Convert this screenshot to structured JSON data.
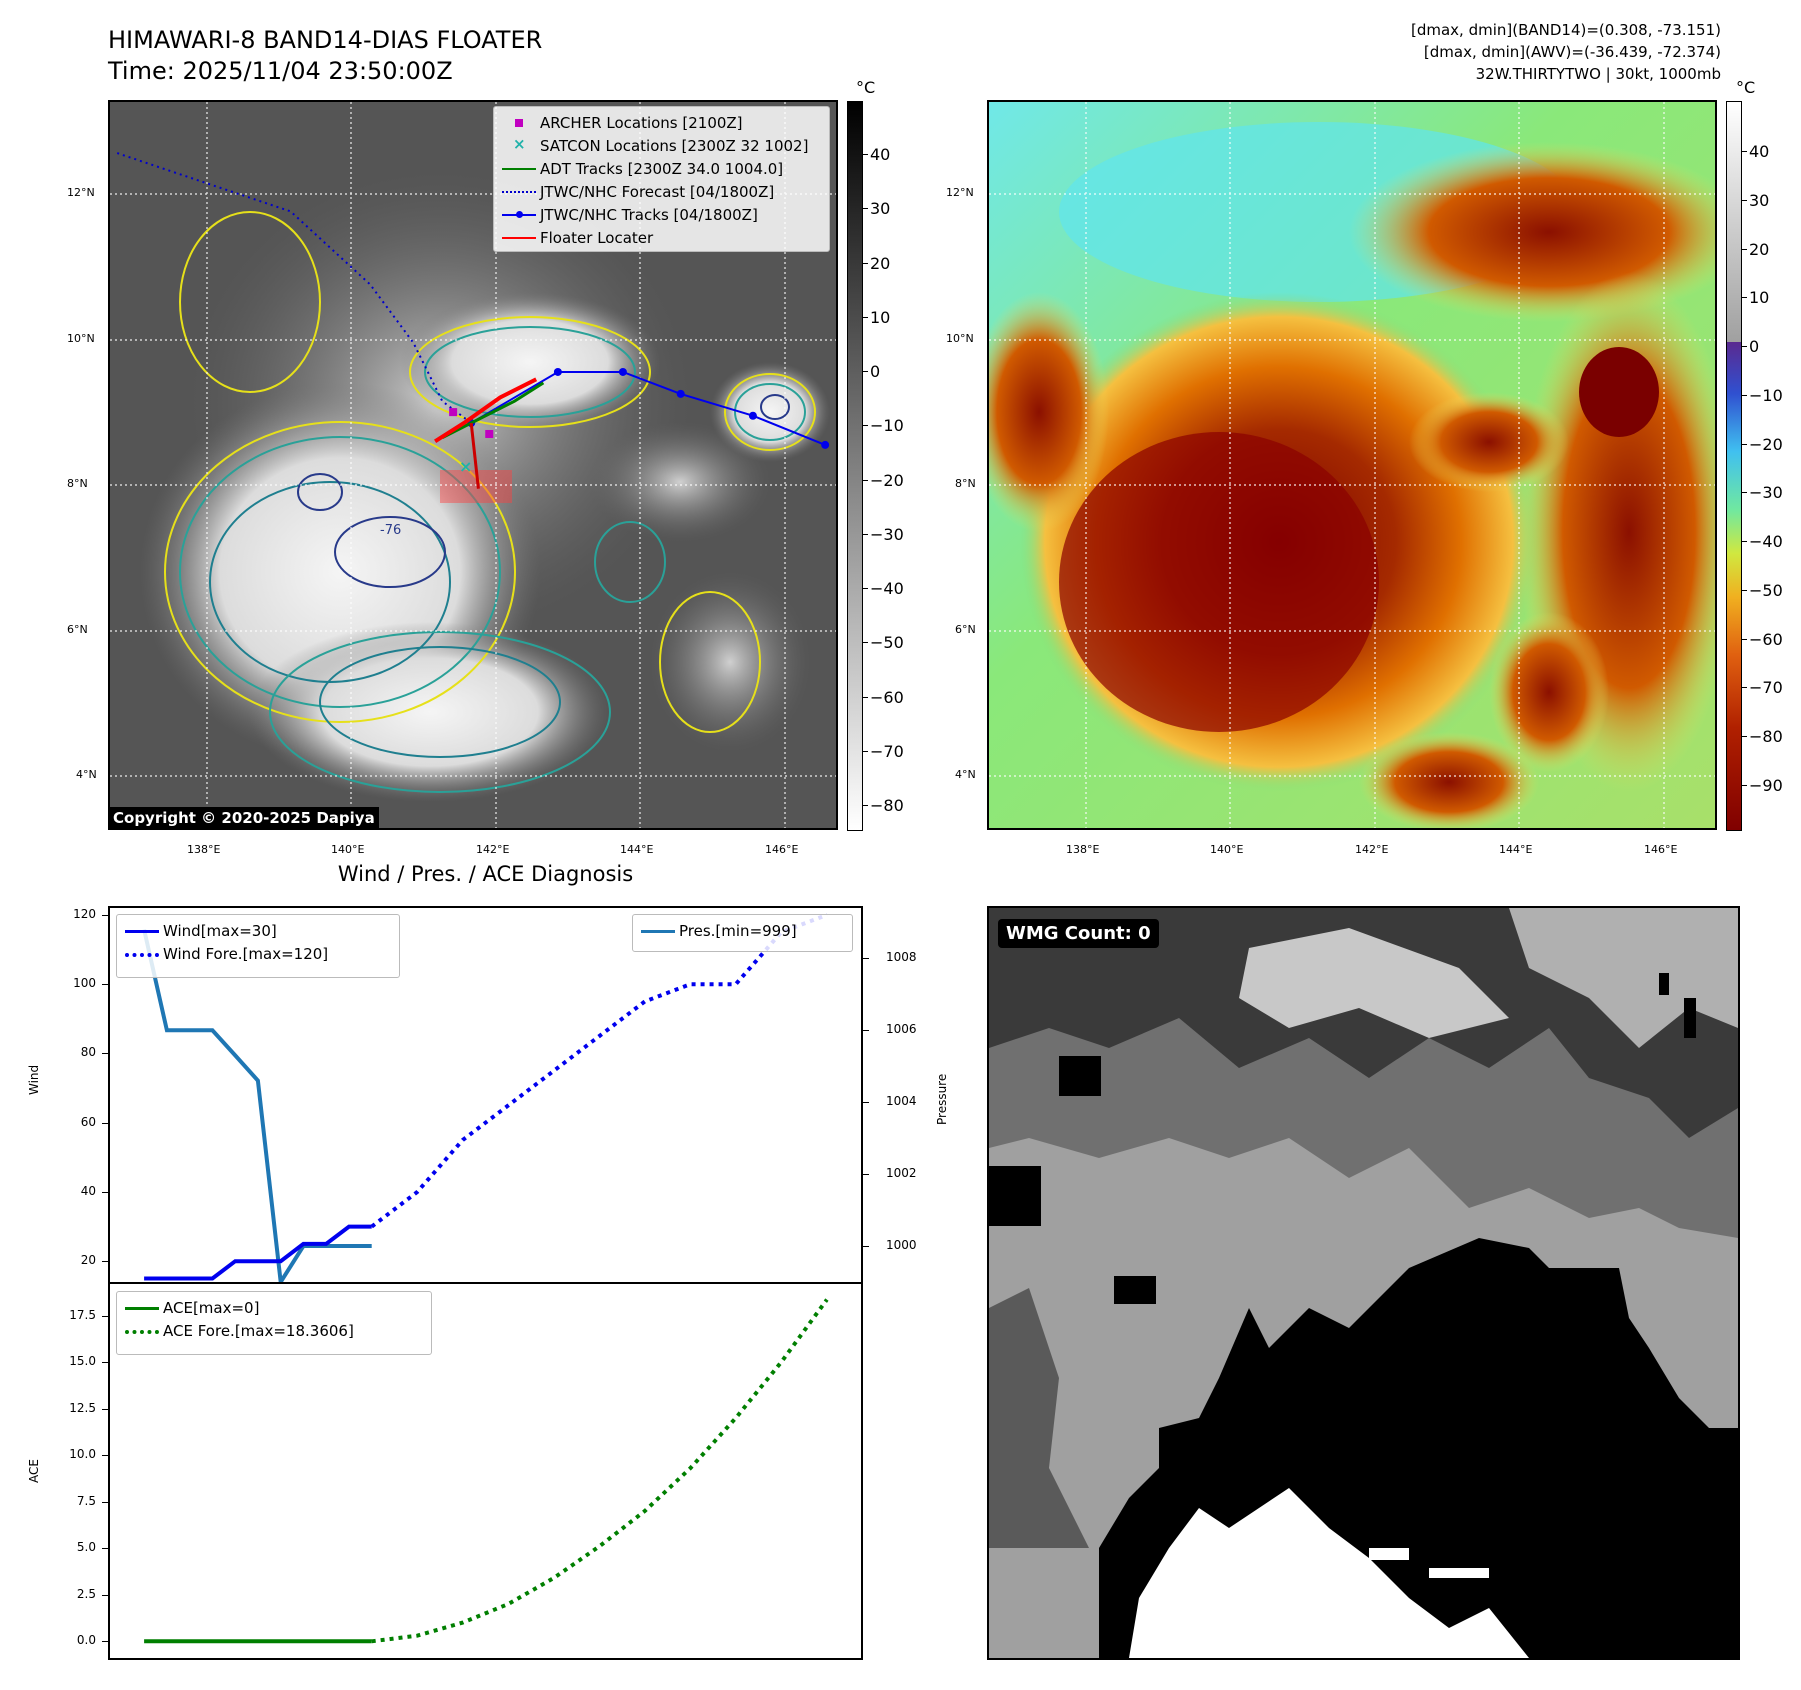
{
  "header": {
    "title_line1": "HIMAWARI-8 BAND14-DIAS FLOATER",
    "title_line2": "Time: 2025/11/04 23:50:00Z",
    "info_line1": "[dmax, dmin](BAND14)=(0.308, -73.151)",
    "info_line2": "[dmax, dmin](AWV)=(-36.439, -72.374)",
    "info_line3": "32W.THIRTYTWO | 30kt, 1000mb"
  },
  "map_axes": {
    "lat_labels": [
      "12°N",
      "10°N",
      "8°N",
      "6°N",
      "4°N"
    ],
    "lon_labels": [
      "138°E",
      "140°E",
      "142°E",
      "144°E",
      "146°E"
    ]
  },
  "left_map": {
    "copyright": "Copyright © 2020-2025 Dapiya",
    "colorbar_unit": "°C",
    "colorbar_ticks": [
      "40",
      "30",
      "20",
      "10",
      "0",
      "−10",
      "−20",
      "−30",
      "−40",
      "−50",
      "−60",
      "−70",
      "−80"
    ],
    "contour_label": "-76",
    "legend": [
      {
        "label": "ARCHER Locations [2100Z]",
        "symbol": "square",
        "color": "#c000c0"
      },
      {
        "label": "SATCON Locations [2300Z 32 1002]",
        "symbol": "x",
        "color": "#20b2aa"
      },
      {
        "label": "ADT Tracks [2300Z 34.0 1004.0]",
        "symbol": "line",
        "color": "#007f00"
      },
      {
        "label": "JTWC/NHC Forecast [04/1800Z]",
        "symbol": "dotted",
        "color": "#0000cc"
      },
      {
        "label": "JTWC/NHC Tracks [04/1800Z]",
        "symbol": "line-dot",
        "color": "#0000ee"
      },
      {
        "label": "Floater Locater",
        "symbol": "line",
        "color": "#ff0000"
      }
    ],
    "jtwc_track": {
      "lon": [
        141.7,
        142.9,
        143.8,
        144.6,
        145.6,
        146.6
      ],
      "lat": [
        8.9,
        9.6,
        9.6,
        9.3,
        9.0,
        8.6
      ]
    },
    "jtwc_forecast": {
      "lon": [
        136.8,
        138.0,
        139.2,
        140.3,
        140.9,
        141.3,
        141.7
      ],
      "lat": [
        12.6,
        12.2,
        11.8,
        10.8,
        10.0,
        9.2,
        8.9
      ]
    },
    "floater_track": {
      "lon": [
        141.2,
        141.6,
        142.1,
        142.6
      ],
      "lat": [
        8.65,
        8.9,
        9.25,
        9.5
      ]
    },
    "adt_track": {
      "lon": [
        141.3,
        141.8,
        142.3,
        142.7
      ],
      "lat": [
        8.7,
        8.95,
        9.2,
        9.45
      ]
    },
    "archer_points": {
      "lon": [
        141.45,
        141.95
      ],
      "lat": [
        9.05,
        8.75
      ]
    },
    "satcon_points": {
      "lon": [
        141.6
      ],
      "lat": [
        8.3
      ]
    }
  },
  "right_map": {
    "colorbar_unit": "°C",
    "colorbar_ticks": [
      "40",
      "30",
      "20",
      "10",
      "0",
      "−10",
      "−20",
      "−30",
      "−40",
      "−50",
      "−60",
      "−70",
      "−80",
      "−90"
    ]
  },
  "diagnosis": {
    "title": "Wind / Pres. / ACE Diagnosis",
    "wind_ylabel": "Wind",
    "pres_ylabel": "Pressure",
    "ace_ylabel": "ACE",
    "wind_legend": [
      "Wind[max=30]",
      "Wind Fore.[max=120]"
    ],
    "pres_legend": [
      "Pres.[min=999]"
    ],
    "ace_legend": [
      "ACE[max=0]",
      "ACE Fore.[max=18.3606]"
    ],
    "wind_ticks": [
      "120",
      "100",
      "80",
      "60",
      "40",
      "20"
    ],
    "pres_ticks": [
      "1008",
      "1006",
      "1004",
      "1002",
      "1000"
    ],
    "ace_ticks": [
      "17.5",
      "15.0",
      "12.5",
      "10.0",
      "7.5",
      "5.0",
      "2.5",
      "0.0"
    ]
  },
  "wmg": {
    "count_label": "WMG Count: 0"
  },
  "chart_data": [
    {
      "type": "line",
      "title": "Wind / Pres. / ACE Diagnosis",
      "ylabel": "Wind",
      "ylim": [
        14,
        122
      ],
      "x": [
        0,
        1,
        2,
        3,
        4,
        5,
        6,
        7,
        8,
        9,
        10
      ],
      "series": [
        {
          "name": "Wind[max=30]",
          "color": "#0000ee",
          "style": "solid",
          "x": [
            0,
            1,
            2,
            3,
            4,
            5,
            6,
            7,
            8,
            9,
            10
          ],
          "values": [
            15,
            15,
            15,
            15,
            20,
            20,
            20,
            25,
            25,
            30,
            30
          ]
        },
        {
          "name": "Wind Fore.[max=120]",
          "color": "#0000ee",
          "style": "dotted",
          "x": [
            10,
            12,
            14,
            16,
            18,
            20,
            22,
            24,
            26,
            28,
            30
          ],
          "values": [
            30,
            40,
            55,
            65,
            75,
            85,
            95,
            100,
            100,
            115,
            120
          ]
        }
      ]
    },
    {
      "type": "line",
      "ylabel": "Pressure",
      "ylim": [
        999,
        1009.4
      ],
      "series": [
        {
          "name": "Pres.[min=999]",
          "color": "#1f77b4",
          "style": "solid",
          "x": [
            0,
            1,
            2,
            3,
            4,
            5,
            6,
            7,
            8,
            9,
            10
          ],
          "values": [
            1008.8,
            1006,
            1006,
            1006,
            1005.3,
            1004.6,
            999,
            1000,
            1000,
            1000,
            1000
          ]
        }
      ]
    },
    {
      "type": "line",
      "ylabel": "ACE",
      "ylim": [
        -0.9,
        19.2
      ],
      "series": [
        {
          "name": "ACE[max=0]",
          "color": "#007f00",
          "style": "solid",
          "x": [
            0,
            2,
            4,
            6,
            8,
            10
          ],
          "values": [
            0,
            0,
            0,
            0,
            0,
            0
          ]
        },
        {
          "name": "ACE Fore.[max=18.3606]",
          "color": "#007f00",
          "style": "dotted",
          "x": [
            10,
            12,
            14,
            16,
            18,
            20,
            22,
            24,
            26,
            28,
            30
          ],
          "values": [
            0,
            0.3,
            1.0,
            2.0,
            3.4,
            5.1,
            7.0,
            9.3,
            12.0,
            15.0,
            18.3606
          ]
        }
      ]
    }
  ]
}
